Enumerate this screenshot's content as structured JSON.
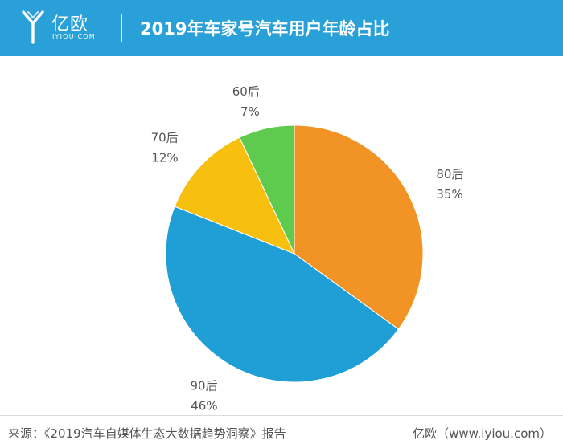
{
  "header": {
    "logo_text": "亿欧",
    "logo_sub": "IYIOU·COM",
    "title": "2019年车家号汽车用户年龄占比",
    "background": "#29a0d8"
  },
  "chart_data": {
    "type": "pie",
    "title": "2019年车家号汽车用户年龄占比",
    "slices": [
      {
        "label": "80后",
        "percent_label": "35%",
        "value": 35,
        "color": "#f29325"
      },
      {
        "label": "90后",
        "percent_label": "46%",
        "value": 46,
        "color": "#1f9fd6"
      },
      {
        "label": "70后",
        "percent_label": "12%",
        "value": 12,
        "color": "#f7c00f"
      },
      {
        "label": "60后",
        "percent_label": "7%",
        "value": 7,
        "color": "#5fcb4e"
      }
    ],
    "start": "12 o'clock",
    "direction": "clockwise",
    "legend": "none"
  },
  "footer": {
    "source": "来源：《2019汽车自媒体生态大数据趋势洞察》报告",
    "site": "亿欧（www.iyiou.com）"
  }
}
